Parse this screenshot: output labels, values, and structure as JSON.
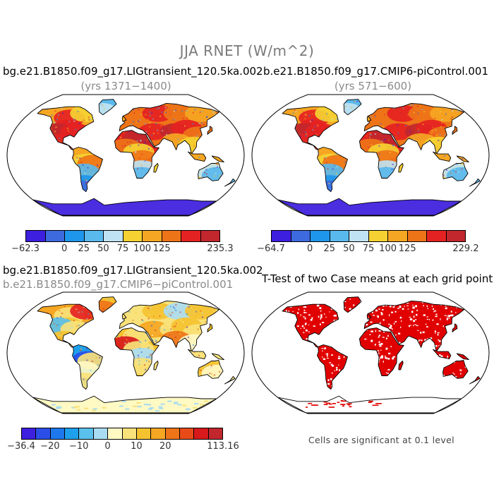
{
  "figure": {
    "title": "JJA RNET (W/m^2)"
  },
  "panels": [
    {
      "title": "bg.e21.B1850.f09_g17.LIGtransient_120.5ka.002",
      "subtitle": "(yrs 1371−1400)",
      "colorbar": {
        "labels": [
          "−62.3",
          "0",
          "25",
          "50",
          "75",
          "100",
          "125",
          "235.3"
        ],
        "colors": [
          "#3d1fe0",
          "#3e6ae0",
          "#1e96ec",
          "#5ab9ec",
          "#bfe3f2",
          "#f5d232",
          "#f5a623",
          "#ee7418",
          "#e52222",
          "#c1272d"
        ]
      }
    },
    {
      "title": "b.e21.B1850.f09_g17.CMIP6-piControl.001",
      "subtitle": "(yrs 571−600)",
      "colorbar": {
        "labels": [
          "−64.7",
          "0",
          "25",
          "50",
          "75",
          "100",
          "125",
          "229.2"
        ],
        "colors": [
          "#3d1fe0",
          "#3e6ae0",
          "#1e96ec",
          "#5ab9ec",
          "#bfe3f2",
          "#f5d232",
          "#f5a623",
          "#ee7418",
          "#e52222",
          "#c1272d"
        ]
      }
    },
    {
      "title": "bg.e21.B1850.f09_g17.LIGtransient_120.5ka.002",
      "subtitle": "b.e21.B1850.f09_g17.CMIP6−piControl.001",
      "colorbar": {
        "labels": [
          "−36.4",
          "−20",
          "−10",
          "0",
          "10",
          "20",
          "113.16"
        ],
        "colors": [
          "#3d1fe0",
          "#2b4ee8",
          "#1e78ec",
          "#1ea0ec",
          "#5ac0ec",
          "#a9dcf2",
          "#fff9c4",
          "#f9e27a",
          "#f5c230",
          "#f5a623",
          "#ee7418",
          "#e84a18",
          "#d7191c",
          "#c1272d"
        ]
      }
    },
    {
      "title": "T-Test of two Case means at each grid point",
      "footnote": "Cells are significant at 0.1 level"
    }
  ],
  "palette": {
    "ocean": "#ffffff",
    "coast": "#000000",
    "antarctica_rnet": "#4a2ee0",
    "ttest_significant": "#e10000"
  }
}
